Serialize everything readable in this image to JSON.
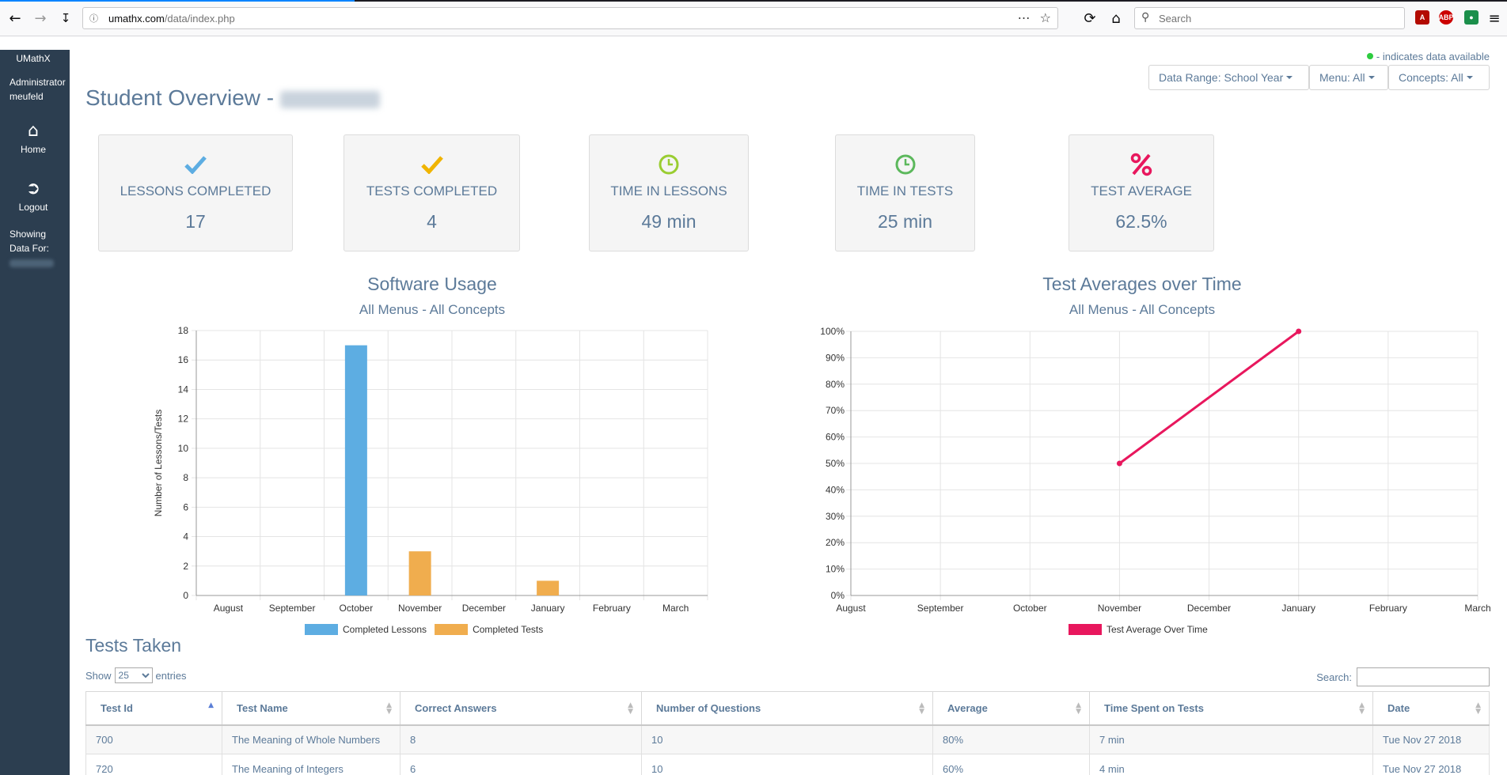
{
  "browser": {
    "url_domain": "umathx.com",
    "url_path": "/data/index.php",
    "search_placeholder": "Search"
  },
  "sidebar": {
    "brand": "UMathX",
    "role": "Administrator",
    "user": "meufeld",
    "home_label": "Home",
    "logout_label": "Logout",
    "showing_label": "Showing Data For:"
  },
  "header": {
    "legend_note": "- indicates data available",
    "title": "Student Overview -",
    "filters": {
      "range": "Data Range: School Year",
      "menu": "Menu: All",
      "concepts": "Concepts: All"
    }
  },
  "stats": [
    {
      "label": "LESSONS COMPLETED",
      "value": "17",
      "icon": "check-icon",
      "color": "#5dade2"
    },
    {
      "label": "TESTS COMPLETED",
      "value": "4",
      "icon": "check-icon",
      "color": "#f0b400"
    },
    {
      "label": "TIME IN LESSONS",
      "value": "49 min",
      "icon": "clock-icon",
      "color": "#9acd32"
    },
    {
      "label": "TIME IN TESTS",
      "value": "25 min",
      "icon": "clock-icon",
      "color": "#5cb85c"
    },
    {
      "label": "TEST AVERAGE",
      "value": "62.5%",
      "icon": "percent-icon",
      "color": "#e8175d"
    }
  ],
  "chart_data": [
    {
      "type": "bar",
      "title": "Software Usage",
      "subtitle": "All Menus - All Concepts",
      "ylabel": "Number of Lessons/Tests",
      "categories": [
        "August",
        "September",
        "October",
        "November",
        "December",
        "January",
        "February",
        "March"
      ],
      "ylim": [
        0,
        18
      ],
      "yticks": [
        0,
        2,
        4,
        6,
        8,
        10,
        12,
        14,
        16,
        18
      ],
      "series": [
        {
          "name": "Completed Lessons",
          "color": "#5dade2",
          "values": [
            0,
            0,
            17,
            0,
            0,
            0,
            0,
            0
          ]
        },
        {
          "name": "Completed Tests",
          "color": "#f0ad4e",
          "values": [
            0,
            0,
            0,
            3,
            0,
            1,
            0,
            0
          ]
        }
      ],
      "grid": true,
      "legend": "bottom"
    },
    {
      "type": "line",
      "title": "Test Averages over Time",
      "subtitle": "All Menus - All Concepts",
      "categories": [
        "August",
        "September",
        "October",
        "November",
        "December",
        "January",
        "February",
        "March"
      ],
      "ylim": [
        0,
        100
      ],
      "yticks": [
        "0%",
        "10%",
        "20%",
        "30%",
        "40%",
        "50%",
        "60%",
        "70%",
        "80%",
        "90%",
        "100%"
      ],
      "series": [
        {
          "name": "Test Average Over Time",
          "color": "#e8175d",
          "points": [
            {
              "x": "November",
              "y": 50
            },
            {
              "x": "January",
              "y": 100
            }
          ]
        }
      ],
      "grid": true,
      "legend": "bottom"
    }
  ],
  "tests": {
    "title": "Tests Taken",
    "show_label": "Show",
    "entries_label": "entries",
    "page_size": "25",
    "search_label": "Search:",
    "columns": [
      "Test Id",
      "Test Name",
      "Correct Answers",
      "Number of Questions",
      "Average",
      "Time Spent on Tests",
      "Date"
    ],
    "rows": [
      [
        "700",
        "The Meaning of Whole Numbers",
        "8",
        "10",
        "80%",
        "7 min",
        "Tue Nov 27 2018"
      ],
      [
        "720",
        "The Meaning of Integers",
        "6",
        "10",
        "60%",
        "4 min",
        "Tue Nov 27 2018"
      ]
    ]
  }
}
